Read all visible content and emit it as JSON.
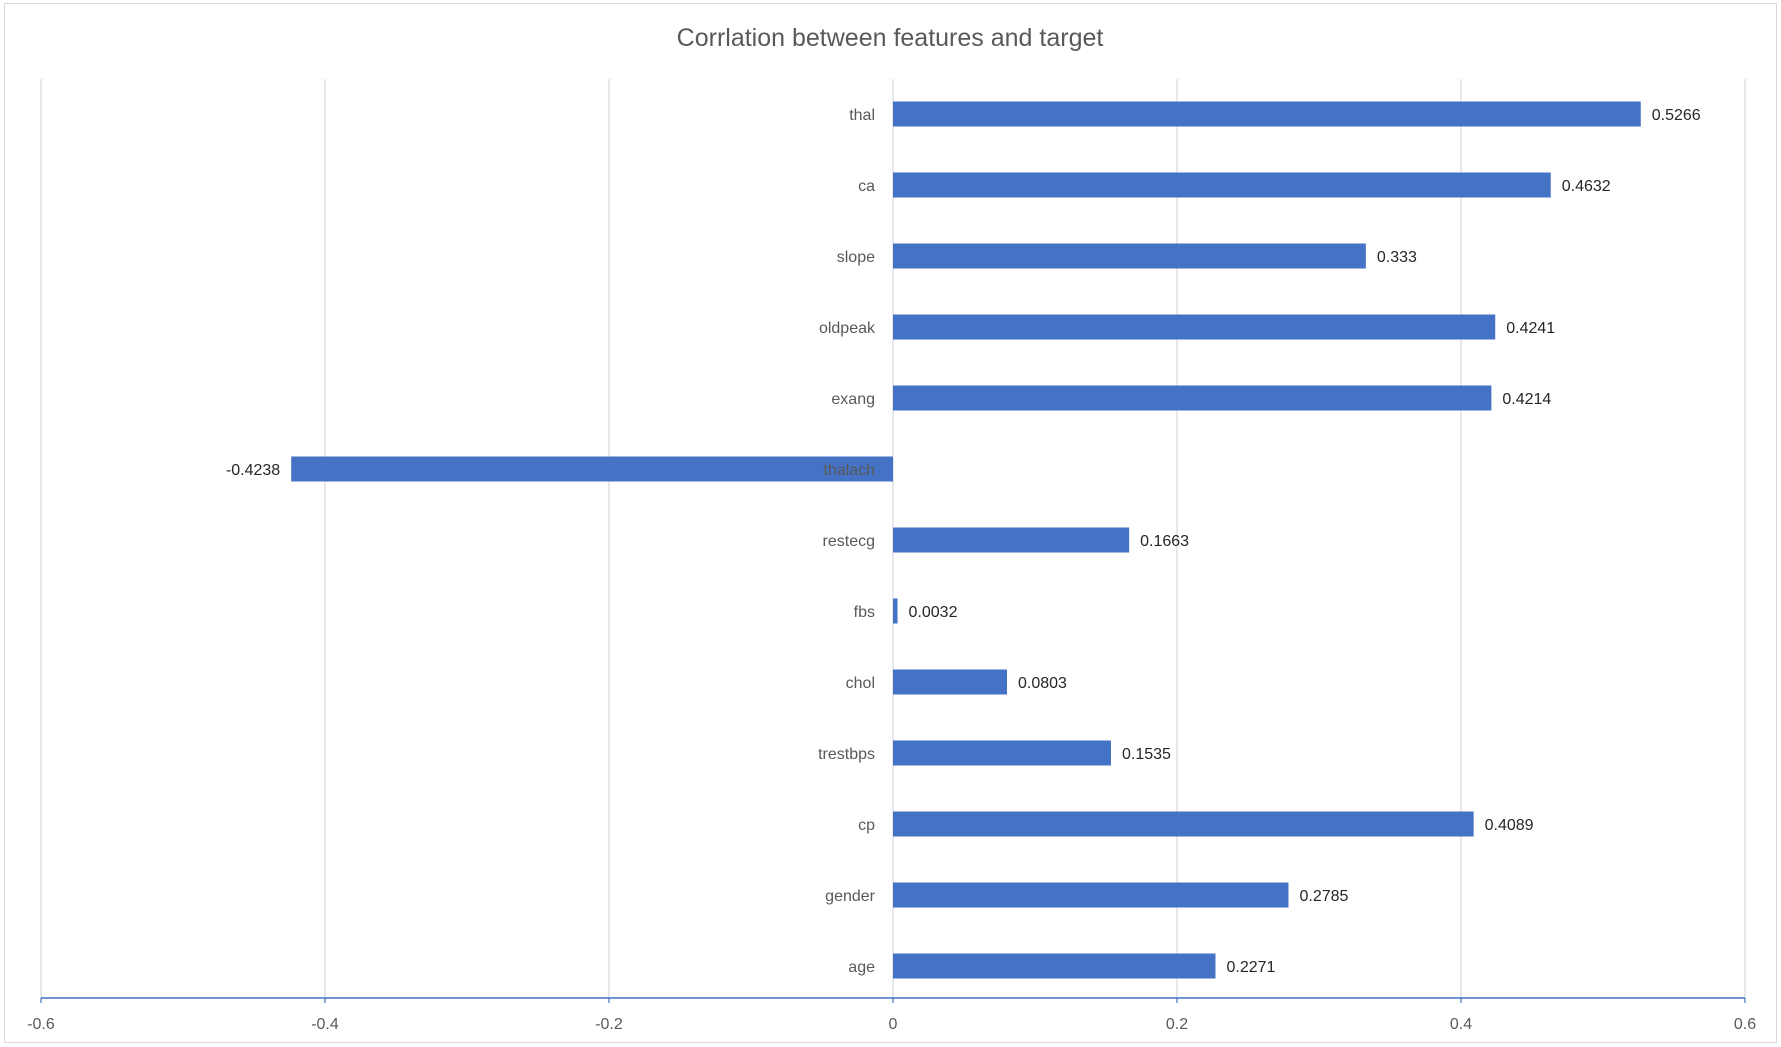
{
  "chart_data": {
    "type": "bar",
    "orientation": "horizontal",
    "title": "Corrlation between features and target",
    "xlabel": "",
    "ylabel": "",
    "xlim": [
      -0.6,
      0.6
    ],
    "x_ticks": [
      "-0.6",
      "-0.4",
      "-0.2",
      "0",
      "0.2",
      "0.4",
      "0.6"
    ],
    "x_tick_values": [
      -0.6,
      -0.4,
      -0.2,
      0,
      0.2,
      0.4,
      0.6
    ],
    "grid": true,
    "legend": "none",
    "categories": [
      "thal",
      "ca",
      "slope",
      "oldpeak",
      "exang",
      "thalach",
      "restecg",
      "fbs",
      "chol",
      "trestbps",
      "cp",
      "gender",
      "age"
    ],
    "values": [
      0.5266,
      0.4632,
      0.333,
      0.4241,
      0.4214,
      -0.4238,
      0.1663,
      0.0032,
      0.0803,
      0.1535,
      0.4089,
      0.2785,
      0.2271
    ],
    "data_labels": [
      "0.5266",
      "0.4632",
      "0.333",
      "0.4241",
      "0.4214",
      "-0.4238",
      "0.1663",
      "0.0032",
      "0.0803",
      "0.1535",
      "0.4089",
      "0.2785",
      "0.2271"
    ],
    "colors": {
      "bar": "#4472C4",
      "grid": "#d9d9d9",
      "axis": "#4472C4"
    }
  }
}
